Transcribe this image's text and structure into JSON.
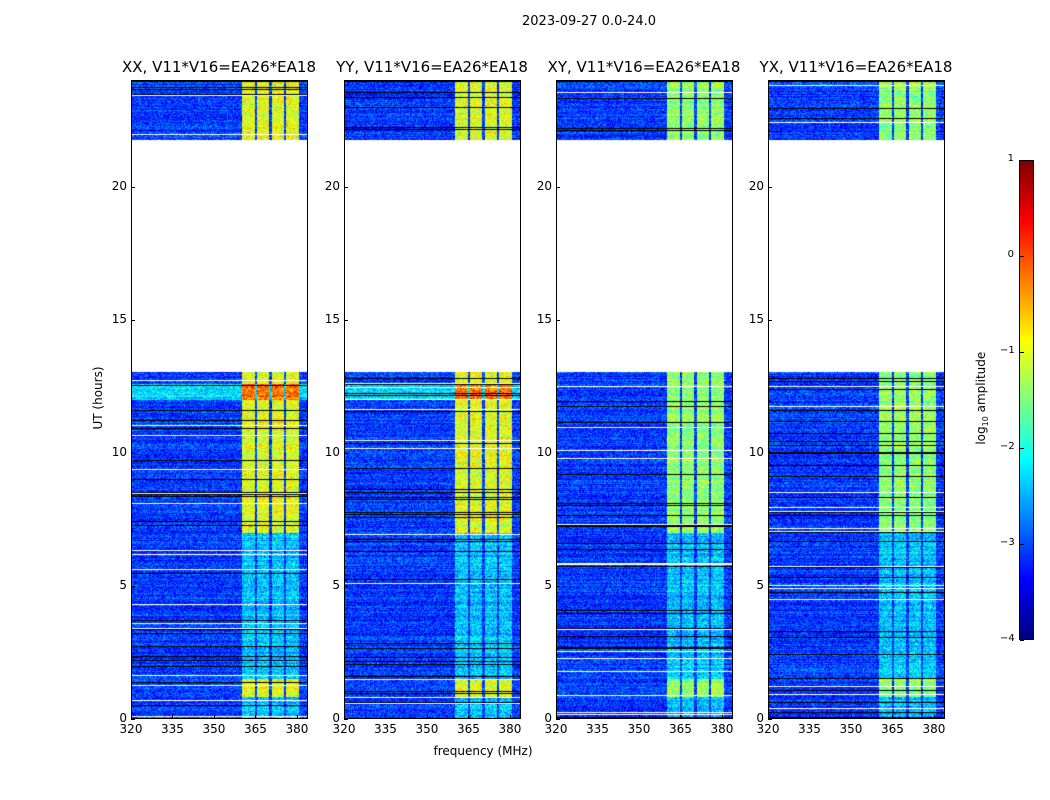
{
  "suptitle": "2023-09-27 0.0-24.0",
  "chart_data": {
    "type": "heatmap",
    "panels": [
      {
        "title": "XX, V11*V16=EA26*EA18"
      },
      {
        "title": "YY, V11*V16=EA26*EA18"
      },
      {
        "title": "XY, V11*V16=EA26*EA18"
      },
      {
        "title": "YX, V11*V16=EA26*EA18"
      }
    ],
    "xlabel": "frequency (MHz)",
    "ylabel": "UT (hours)",
    "xlim": [
      320,
      384
    ],
    "ylim": [
      0,
      24
    ],
    "xticks": [
      "320",
      "335",
      "350",
      "365",
      "380"
    ],
    "xtick_values": [
      320,
      335,
      350,
      365,
      380
    ],
    "yticks": [
      "0",
      "5",
      "10",
      "15",
      "20"
    ],
    "ytick_values": [
      0,
      5,
      10,
      15,
      20
    ],
    "data_gap_hours": [
      13.05,
      21.8
    ],
    "bright_band_mhz": [
      360,
      381
    ],
    "colorbar": {
      "label_prefix": "log",
      "label_sub": "10",
      "label_suffix": " amplitude",
      "range": [
        -4,
        1
      ],
      "ticks": [
        "1",
        "0",
        "−1",
        "−2",
        "−3",
        "−4"
      ],
      "tick_values": [
        1,
        0,
        -1,
        -2,
        -3,
        -4
      ],
      "colormap": "jet"
    }
  }
}
